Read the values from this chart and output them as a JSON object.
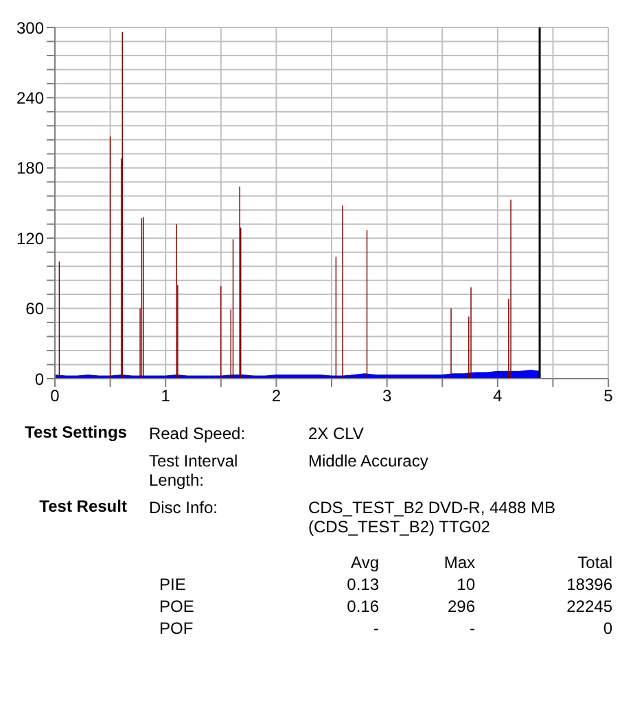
{
  "chart_data": {
    "type": "bar",
    "x": [
      0.04,
      0.5,
      0.6,
      0.61,
      0.77,
      0.785,
      0.8,
      1.1,
      1.11,
      1.5,
      1.59,
      1.61,
      1.67,
      1.68,
      2.54,
      2.6,
      2.82,
      3.58,
      3.74,
      3.76,
      4.1,
      4.12
    ],
    "series": [
      {
        "type": "area",
        "color": "#0000ff",
        "x": [
          0,
          0.1,
          0.2,
          0.3,
          0.4,
          0.5,
          0.6,
          0.7,
          0.8,
          0.9,
          1.0,
          1.1,
          1.2,
          1.3,
          1.4,
          1.5,
          1.6,
          1.7,
          1.8,
          1.9,
          2.0,
          2.1,
          2.2,
          2.3,
          2.4,
          2.5,
          2.6,
          2.7,
          2.8,
          2.9,
          3.0,
          3.1,
          3.2,
          3.3,
          3.4,
          3.5,
          3.6,
          3.7,
          3.8,
          3.9,
          4.0,
          4.1,
          4.2,
          4.3,
          4.38
        ],
        "values": [
          3,
          2,
          2,
          3,
          2,
          2,
          3,
          2,
          2,
          2,
          2,
          3,
          2,
          2,
          2,
          2,
          3,
          3,
          2,
          2,
          3,
          3,
          3,
          3,
          3,
          2,
          2,
          3,
          4,
          3,
          3,
          3,
          3,
          3,
          3,
          3,
          4,
          4,
          5,
          5,
          6,
          6,
          6,
          7,
          6
        ]
      },
      {
        "color": "#800000",
        "values": [
          100,
          207,
          188,
          296,
          60,
          137,
          138,
          132,
          80,
          79,
          59,
          119,
          164,
          129,
          104,
          148,
          127,
          60,
          53,
          78,
          68,
          153
        ]
      }
    ],
    "xlim": [
      0,
      5
    ],
    "xticks": [
      0,
      {
        "value": 0.5,
        "label": null
      },
      1,
      {
        "value": 1.5,
        "label": null
      },
      2,
      {
        "value": 2.5,
        "label": null
      },
      3,
      {
        "value": 3.5,
        "label": null
      },
      4,
      {
        "value": 4.5,
        "label": null
      },
      5
    ],
    "ylim": [
      0,
      300
    ],
    "yticks": [
      0,
      {
        "value": 12,
        "label": null
      },
      {
        "value": 24,
        "label": null
      },
      {
        "value": 36,
        "label": null
      },
      {
        "value": 48,
        "label": null
      },
      60,
      {
        "value": 72,
        "label": null
      },
      {
        "value": 84,
        "label": null
      },
      {
        "value": 96,
        "label": null
      },
      {
        "value": 108,
        "label": null
      },
      120,
      {
        "value": 132,
        "label": null
      },
      {
        "value": 144,
        "label": null
      },
      {
        "value": 156,
        "label": null
      },
      {
        "value": 168,
        "label": null
      },
      180,
      {
        "value": 192,
        "label": null
      },
      {
        "value": 204,
        "label": null
      },
      {
        "value": 216,
        "label": null
      },
      {
        "value": 228,
        "label": null
      },
      240,
      {
        "value": 252,
        "label": null
      },
      {
        "value": 264,
        "label": null
      },
      {
        "value": 276,
        "label": null
      },
      {
        "value": 288,
        "label": null
      },
      300
    ],
    "ref_lines": [
      {
        "axis": "x",
        "value": 4.38,
        "color": "#000000"
      }
    ],
    "grid": true,
    "legend": false,
    "marker": "none",
    "annotations": [
      "Test Settings",
      "Read Speed:",
      "2X CLV",
      "Test Interval Length:",
      "Middle Accuracy",
      "Test Result",
      "Disc Info:",
      "CDS_TEST_B2 DVD-R, 4488 MB (CDS_TEST_B2) TTG02",
      "Avg",
      "Max",
      "Total",
      "PIE",
      "0.13",
      "10",
      "18396",
      "POE",
      "0.16",
      "296",
      "22245",
      "POF",
      "-",
      "-",
      "0"
    ]
  }
}
